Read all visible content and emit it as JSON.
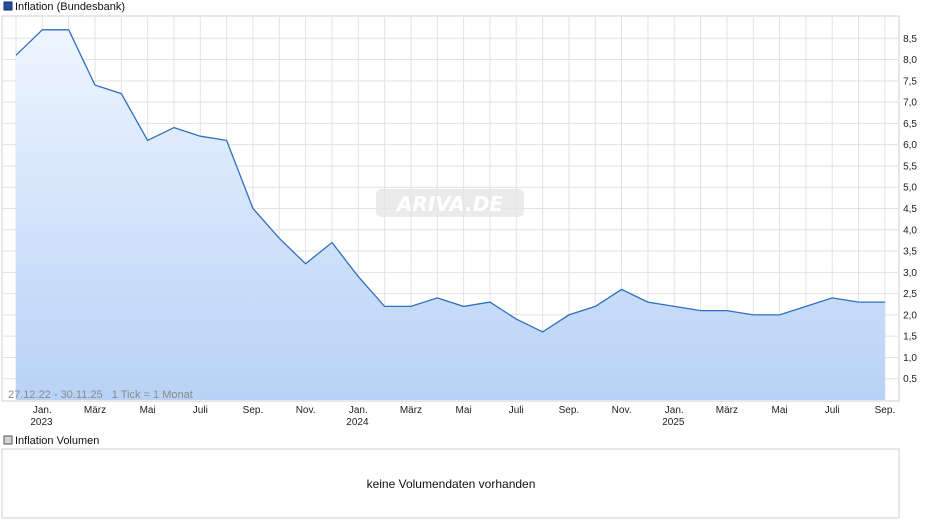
{
  "chart_data": {
    "type": "area",
    "legend": "Inflation (Bundesbank)",
    "color": "#2f6fbf",
    "fill_top": "#eef5ff",
    "fill_bottom": "#b8d2f6",
    "watermark": "ARIVA.DE",
    "range_note": "27.12.22 - 30.11.25   1 Tick = 1 Monat",
    "ylim": [
      0,
      9
    ],
    "yticks": [
      "0,5",
      "1,0",
      "1,5",
      "2,0",
      "2,5",
      "3,0",
      "3,5",
      "4,0",
      "4,5",
      "5,0",
      "5,5",
      "6,0",
      "6,5",
      "7,0",
      "7,5",
      "8,0",
      "8,5"
    ],
    "xticks": [
      {
        "label": "Jan.",
        "sub": "2023",
        "i": 1
      },
      {
        "label": "März",
        "sub": "",
        "i": 3
      },
      {
        "label": "Mai",
        "sub": "",
        "i": 5
      },
      {
        "label": "Juli",
        "sub": "",
        "i": 7
      },
      {
        "label": "Sep.",
        "sub": "",
        "i": 9
      },
      {
        "label": "Nov.",
        "sub": "",
        "i": 11
      },
      {
        "label": "Jan.",
        "sub": "2024",
        "i": 13
      },
      {
        "label": "März",
        "sub": "",
        "i": 15
      },
      {
        "label": "Mai",
        "sub": "",
        "i": 17
      },
      {
        "label": "Juli",
        "sub": "",
        "i": 19
      },
      {
        "label": "Sep.",
        "sub": "",
        "i": 21
      },
      {
        "label": "Nov.",
        "sub": "",
        "i": 23
      },
      {
        "label": "Jan.",
        "sub": "2025",
        "i": 25
      },
      {
        "label": "März",
        "sub": "",
        "i": 27
      },
      {
        "label": "Mai",
        "sub": "",
        "i": 29
      },
      {
        "label": "Juli",
        "sub": "",
        "i": 31
      },
      {
        "label": "Sep.",
        "sub": "",
        "i": 33
      }
    ],
    "values": [
      8.1,
      8.7,
      8.7,
      7.4,
      7.2,
      6.1,
      6.4,
      6.2,
      6.1,
      4.5,
      3.8,
      3.2,
      3.7,
      2.9,
      2.2,
      2.2,
      2.4,
      2.2,
      2.3,
      1.9,
      1.6,
      2.0,
      2.2,
      2.6,
      2.3,
      2.2,
      2.1,
      2.1,
      2.0,
      2.0,
      2.2,
      2.4,
      2.3,
      2.3
    ]
  },
  "volume": {
    "legend": "Inflation Volumen",
    "message": "keine Volumendaten vorhanden"
  }
}
